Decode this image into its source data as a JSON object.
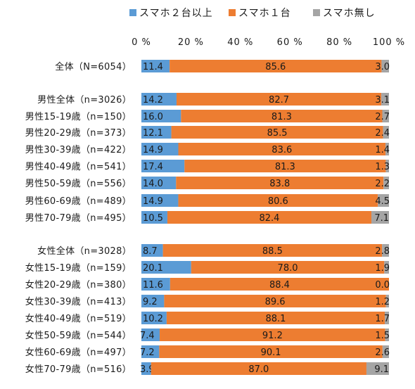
{
  "chart_data": {
    "type": "bar",
    "stacked": "percent",
    "orientation": "horizontal",
    "xlim": [
      0,
      100
    ],
    "ticks": [
      "0 %",
      "20 %",
      "40 %",
      "60 %",
      "80 %",
      "100 %"
    ],
    "legend_position": "top",
    "series": [
      {
        "name": "スマホ２台以上",
        "color": "#5B9BD5"
      },
      {
        "name": "スマホ１台",
        "color": "#ED7D31"
      },
      {
        "name": "スマホ無し",
        "color": "#A5A5A5"
      }
    ],
    "rows": [
      {
        "label": "全体（N=6054）",
        "values": [
          11.4,
          85.6,
          3.0
        ],
        "labels": [
          "11.4",
          "85.6",
          "3.0"
        ]
      },
      {
        "label": "男性全体（n=3026）",
        "values": [
          14.2,
          82.7,
          3.1
        ],
        "labels": [
          "14.2",
          "82.7",
          "3.1"
        ]
      },
      {
        "label": "男性15-19歳（n=150）",
        "values": [
          16.0,
          81.3,
          2.7
        ],
        "labels": [
          "16.0",
          "81.3",
          "2.7"
        ]
      },
      {
        "label": "男性20-29歳（n=373）",
        "values": [
          12.1,
          85.5,
          2.4
        ],
        "labels": [
          "12.1",
          "85.5",
          "2.4"
        ]
      },
      {
        "label": "男性30-39歳（n=422）",
        "values": [
          14.9,
          83.6,
          1.4
        ],
        "labels": [
          "14.9",
          "83.6",
          "1.4"
        ]
      },
      {
        "label": "男性40-49歳（n=541）",
        "values": [
          17.4,
          81.3,
          1.3
        ],
        "labels": [
          "17.4",
          "81.3",
          "1.3"
        ]
      },
      {
        "label": "男性50-59歳（n=556）",
        "values": [
          14.0,
          83.8,
          2.2
        ],
        "labels": [
          "14.0",
          "83.8",
          "2.2"
        ]
      },
      {
        "label": "男性60-69歳（n=489）",
        "values": [
          14.9,
          80.6,
          4.5
        ],
        "labels": [
          "14.9",
          "80.6",
          "4.5"
        ]
      },
      {
        "label": "男性70-79歳（n=495）",
        "values": [
          10.5,
          82.4,
          7.1
        ],
        "labels": [
          "10.5",
          "82.4",
          "7.1"
        ]
      },
      {
        "label": "女性全体（n=3028）",
        "values": [
          8.7,
          88.5,
          2.8
        ],
        "labels": [
          "8.7",
          "88.5",
          "2.8"
        ]
      },
      {
        "label": "女性15-19歳（n=159）",
        "values": [
          20.1,
          78.0,
          1.9
        ],
        "labels": [
          "20.1",
          "78.0",
          "1.9"
        ]
      },
      {
        "label": "女性20-29歳（n=380）",
        "values": [
          11.6,
          88.4,
          0.0
        ],
        "labels": [
          "11.6",
          "88.4",
          "0.0"
        ]
      },
      {
        "label": "女性30-39歳（n=413）",
        "values": [
          9.2,
          89.6,
          1.2
        ],
        "labels": [
          "9.2",
          "89.6",
          "1.2"
        ]
      },
      {
        "label": "女性40-49歳（n=519）",
        "values": [
          10.2,
          88.1,
          1.7
        ],
        "labels": [
          "10.2",
          "88.1",
          "1.7"
        ]
      },
      {
        "label": "女性50-59歳（n=544）",
        "values": [
          7.4,
          91.2,
          1.5
        ],
        "labels": [
          "7.4",
          "91.2",
          "1.5"
        ]
      },
      {
        "label": "女性60-69歳（n=497）",
        "values": [
          7.2,
          90.1,
          2.6
        ],
        "labels": [
          "7.2",
          "90.1",
          "2.6"
        ]
      },
      {
        "label": "女性70-79歳（n=516）",
        "values": [
          3.9,
          87.0,
          9.1
        ],
        "labels": [
          "3.9",
          "87.0",
          "9.1"
        ]
      }
    ]
  }
}
